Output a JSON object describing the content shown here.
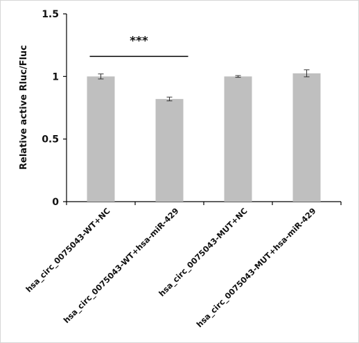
{
  "chart_data": {
    "type": "bar",
    "title": "",
    "xlabel": "",
    "ylabel": "Relative active Rluc/Fluc",
    "ylim": [
      0,
      1.5
    ],
    "yticks": [
      0,
      0.5,
      1,
      1.5
    ],
    "ytick_labels": [
      "0",
      "0.5",
      "1",
      "1.5"
    ],
    "categories": [
      "hsa_circ_0075043-WT+NC",
      "hsa_circ_0075043-WT+hsa-miR-429",
      "hsa_circ_0075043-MUT+NC",
      "hsa_circ_0075043-MUT+hsa-miR-429"
    ],
    "values": [
      1.0,
      0.82,
      1.0,
      1.025
    ],
    "errors": [
      0.02,
      0.015,
      0.007,
      0.028
    ],
    "bar_color": "#bfbfbf",
    "grid": false,
    "annotations": [
      {
        "text": "***",
        "from_category": 0,
        "to_category": 1,
        "y": 1.16
      }
    ]
  }
}
